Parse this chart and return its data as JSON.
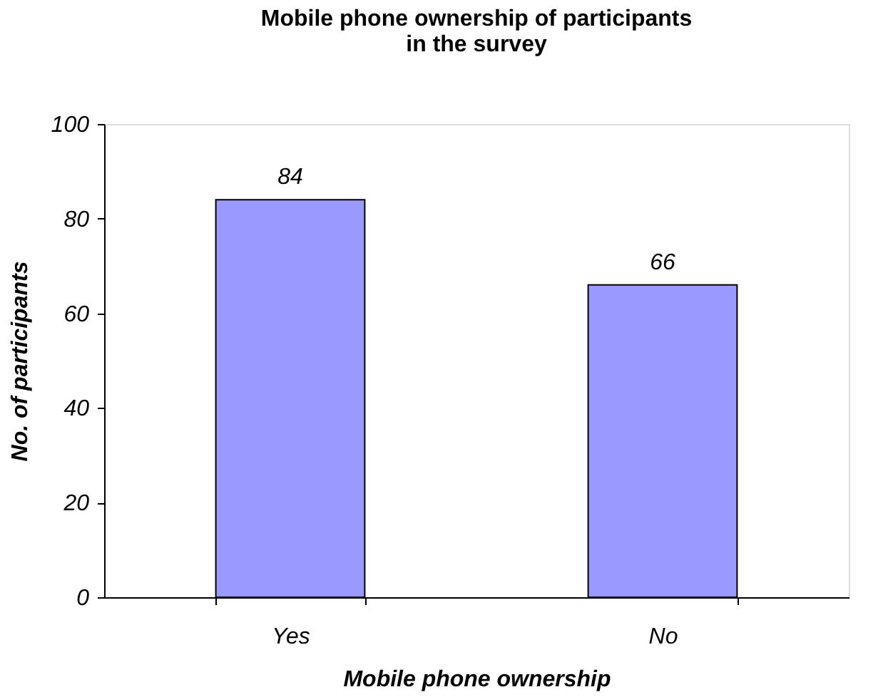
{
  "chart_data": {
    "type": "bar",
    "title": "Mobile phone ownership of participants\nin the survey",
    "xlabel": "Mobile phone ownership",
    "ylabel": "No. of participants",
    "categories": [
      "Yes",
      "No"
    ],
    "values": [
      84,
      66
    ],
    "color": "#9999ff",
    "ylim": [
      0,
      100
    ],
    "yticks": [
      0,
      20,
      40,
      60,
      80,
      100
    ],
    "grid": false,
    "data_labels": true
  }
}
